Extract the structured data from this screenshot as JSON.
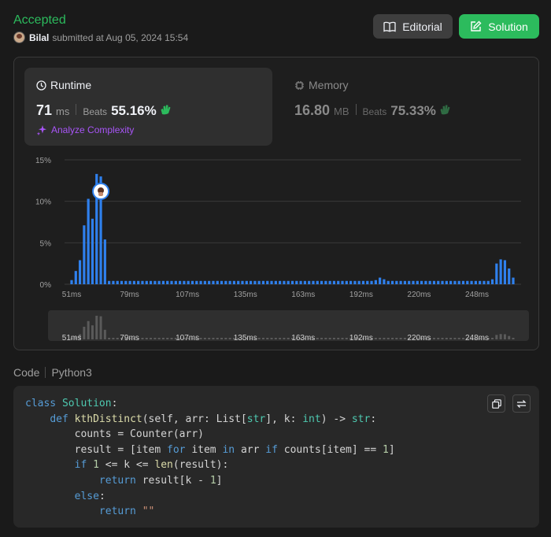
{
  "submission": {
    "status": "Accepted",
    "user": "Bilal",
    "submitted_text": "submitted at Aug 05, 2024 15:54"
  },
  "header_buttons": {
    "editorial": "Editorial",
    "solution": "Solution"
  },
  "runtime": {
    "title": "Runtime",
    "value": "71",
    "unit": "ms",
    "beats_label": "Beats",
    "beats_value": "55.16%",
    "analyze_label": "Analyze Complexity"
  },
  "memory": {
    "title": "Memory",
    "value": "16.80",
    "unit": "MB",
    "beats_label": "Beats",
    "beats_value": "75.33%"
  },
  "chart_data": {
    "type": "bar",
    "y_ticks": [
      "15%",
      "10%",
      "5%",
      "0%"
    ],
    "ylim": [
      0,
      15
    ],
    "x_ticks": [
      "51ms",
      "79ms",
      "107ms",
      "135ms",
      "163ms",
      "192ms",
      "220ms",
      "248ms"
    ],
    "values": [
      0.5,
      1.6,
      2.9,
      7.1,
      10.3,
      7.9,
      13.3,
      13.0,
      5.4,
      0.4,
      0.4,
      0.4,
      0.4,
      0.4,
      0.4,
      0.4,
      0.4,
      0.4,
      0.4,
      0.4,
      0.4,
      0.4,
      0.4,
      0.4,
      0.4,
      0.4,
      0.4,
      0.4,
      0.4,
      0.4,
      0.4,
      0.4,
      0.4,
      0.4,
      0.4,
      0.4,
      0.4,
      0.4,
      0.4,
      0.4,
      0.4,
      0.4,
      0.4,
      0.4,
      0.4,
      0.4,
      0.4,
      0.4,
      0.4,
      0.4,
      0.4,
      0.4,
      0.4,
      0.4,
      0.4,
      0.4,
      0.4,
      0.4,
      0.4,
      0.4,
      0.4,
      0.4,
      0.4,
      0.4,
      0.4,
      0.4,
      0.4,
      0.4,
      0.4,
      0.4,
      0.4,
      0.4,
      0.4,
      0.5,
      0.8,
      0.6,
      0.4,
      0.4,
      0.4,
      0.4,
      0.4,
      0.4,
      0.4,
      0.4,
      0.4,
      0.4,
      0.4,
      0.4,
      0.4,
      0.4,
      0.4,
      0.4,
      0.4,
      0.4,
      0.4,
      0.4,
      0.4,
      0.4,
      0.4,
      0.4,
      0.4,
      0.6,
      2.5,
      3.0,
      2.9,
      1.9,
      0.8
    ],
    "highlight_index": 7,
    "colors": {
      "bar": "#2f80ed",
      "grid": "#3a3a3a",
      "mini_bar": "#5a5a5a"
    }
  },
  "code": {
    "label": "Code",
    "language": "Python3",
    "lines": [
      [
        [
          "kw",
          "class"
        ],
        [
          "t",
          " "
        ],
        [
          "cls",
          "Solution"
        ],
        [
          "t",
          ":"
        ]
      ],
      [
        [
          "t",
          "    "
        ],
        [
          "kw",
          "def"
        ],
        [
          "t",
          " "
        ],
        [
          "fn",
          "kthDistinct"
        ],
        [
          "t",
          "(self, arr: List["
        ],
        [
          "bi",
          "str"
        ],
        [
          "t",
          "], k: "
        ],
        [
          "bi",
          "int"
        ],
        [
          "t",
          ") -> "
        ],
        [
          "bi",
          "str"
        ],
        [
          "t",
          ":"
        ]
      ],
      [
        [
          "t",
          "        counts = Counter(arr)"
        ]
      ],
      [
        [
          "t",
          "        result = [item "
        ],
        [
          "kw",
          "for"
        ],
        [
          "t",
          " item "
        ],
        [
          "kw",
          "in"
        ],
        [
          "t",
          " arr "
        ],
        [
          "kw",
          "if"
        ],
        [
          "t",
          " counts[item] == "
        ],
        [
          "num",
          "1"
        ],
        [
          "t",
          "]"
        ]
      ],
      [
        [
          "t",
          "        "
        ],
        [
          "kw",
          "if"
        ],
        [
          "t",
          " "
        ],
        [
          "num",
          "1"
        ],
        [
          "t",
          " <= k <= "
        ],
        [
          "fn",
          "len"
        ],
        [
          "t",
          "(result):"
        ]
      ],
      [
        [
          "t",
          "            "
        ],
        [
          "kw",
          "return"
        ],
        [
          "t",
          " result[k - "
        ],
        [
          "num",
          "1"
        ],
        [
          "t",
          "]"
        ]
      ],
      [
        [
          "t",
          "        "
        ],
        [
          "kw",
          "else"
        ],
        [
          "t",
          ":"
        ]
      ],
      [
        [
          "t",
          "            "
        ],
        [
          "kw",
          "return"
        ],
        [
          "t",
          " "
        ],
        [
          "str",
          "\"\""
        ]
      ]
    ]
  }
}
